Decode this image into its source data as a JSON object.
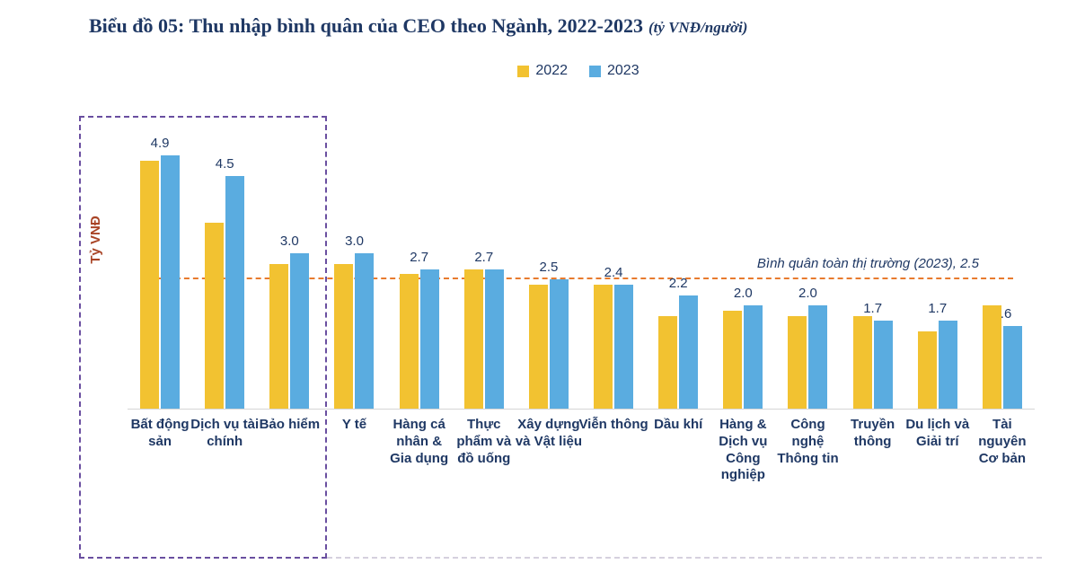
{
  "title": {
    "main": "Biểu đồ 05: Thu nhập bình quân của CEO theo Ngành, 2022-2023",
    "unit": "(tỷ VNĐ/người)"
  },
  "legend": {
    "items": [
      {
        "label": "2022",
        "color": "#F2C231"
      },
      {
        "label": "2023",
        "color": "#5AACE0"
      }
    ]
  },
  "y_axis_label": "Tỷ VNĐ",
  "average_line": {
    "value": 2.5,
    "label": "Bình quân toàn thị trường (2023), 2.5",
    "color": "#E87B2E"
  },
  "highlight_box": {
    "color": "#6A4FA0",
    "covers": [
      "Bất động sản",
      "Dịch vụ tài chính",
      "Bảo hiểm"
    ]
  },
  "chart_data": {
    "type": "bar",
    "title": "Biểu đồ 05: Thu nhập bình quân của CEO theo Ngành, 2022-2023 (tỷ VNĐ/người)",
    "categories": [
      "Bất động sản",
      "Dịch vụ tài chính",
      "Bảo hiểm",
      "Y tế",
      "Hàng cá nhân & Gia dụng",
      "Thực phẩm và đồ uống",
      "Xây dựng và Vật liệu",
      "Viễn thông",
      "Dầu khí",
      "Hàng & Dịch vụ Công nghiệp",
      "Công nghệ Thông tin",
      "Truyền thông",
      "Du lịch và Giải trí",
      "Tài nguyên Cơ bản"
    ],
    "series": [
      {
        "name": "2022",
        "color": "#F2C231",
        "values": [
          4.8,
          3.6,
          2.8,
          2.8,
          2.6,
          2.7,
          2.4,
          2.4,
          1.8,
          1.9,
          1.8,
          1.8,
          1.5,
          2.0
        ]
      },
      {
        "name": "2023",
        "color": "#5AACE0",
        "values": [
          4.9,
          4.5,
          3.0,
          3.0,
          2.7,
          2.7,
          2.5,
          2.4,
          2.2,
          2.0,
          2.0,
          1.7,
          1.7,
          1.6
        ]
      }
    ],
    "value_labels": [
      "4.9",
      "4.5",
      "3.0",
      "3.0",
      "2.7",
      "2.7",
      "2.5",
      "2.4",
      "2.2",
      "2.0",
      "2.0",
      "1.7",
      "1.7",
      "1.6"
    ],
    "value_label_series": "2023",
    "xlabel": "",
    "ylabel": "Tỷ VNĐ",
    "ylim": [
      0,
      5.65
    ],
    "grid": false,
    "legend_position": "top-center",
    "annotations": [
      "Bình quân toàn thị trường (2023), 2.5"
    ]
  }
}
